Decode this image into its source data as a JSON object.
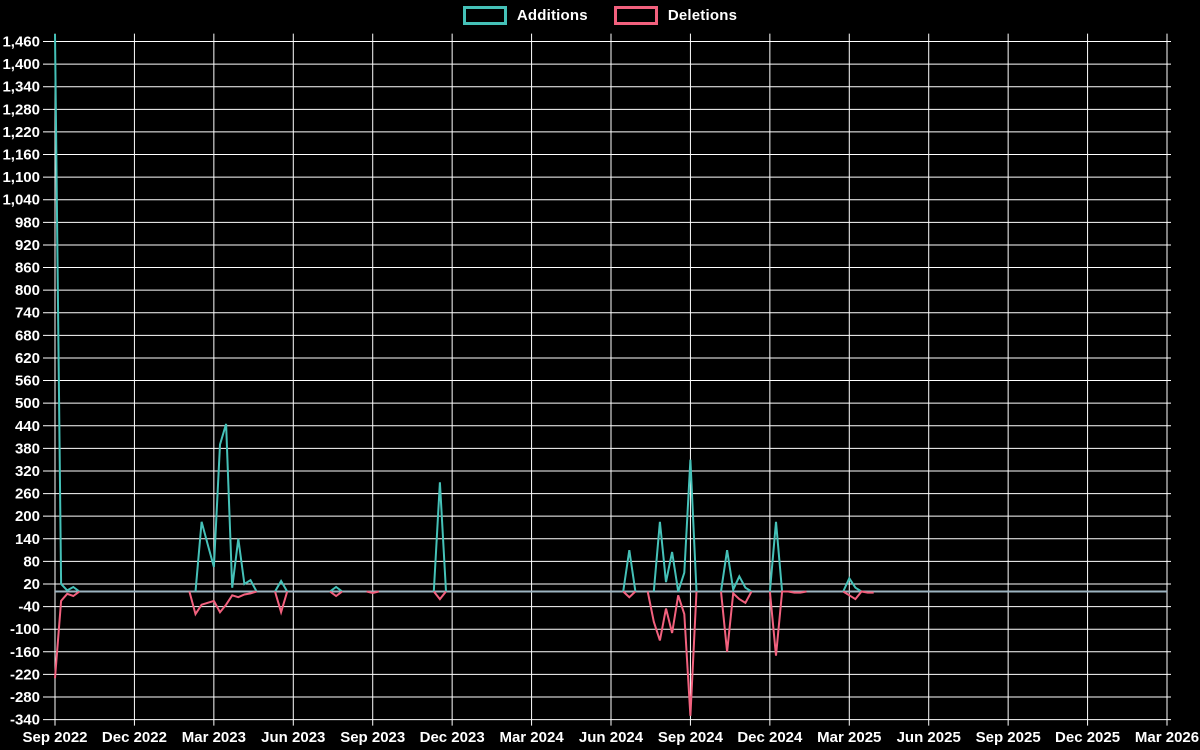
{
  "chart_data": {
    "type": "line",
    "title": "",
    "background": "#000000",
    "grid_color": "#ffffff",
    "text_color": "#ffffff",
    "zero_line_color": "#9db4c1",
    "legend": [
      {
        "label": "Additions",
        "color": "#45c1b8"
      },
      {
        "label": "Deletions",
        "color": "#f2617e"
      }
    ],
    "y_axis": {
      "min": -340,
      "max": 1460,
      "step": 60
    },
    "x_axis": {
      "labels": [
        "Sep 2022",
        "Dec 2022",
        "Mar 2023",
        "Jun 2023",
        "Sep 2023",
        "Dec 2023",
        "Mar 2024",
        "Jun 2024",
        "Sep 2024",
        "Dec 2024",
        "Mar 2025",
        "Jun 2025",
        "Sep 2025",
        "Dec 2025",
        "Mar 2026"
      ],
      "weeks_per_label": 13,
      "total_weeks": 182
    },
    "weeks_count": 135,
    "series": [
      {
        "name": "Additions",
        "color": "#45c1b8",
        "points": [
          [
            0,
            1480
          ],
          [
            1,
            20
          ],
          [
            2,
            3
          ],
          [
            3,
            12
          ],
          [
            4,
            0
          ],
          [
            22,
            0
          ],
          [
            23,
            0
          ],
          [
            24,
            185
          ],
          [
            25,
            125
          ],
          [
            26,
            65
          ],
          [
            27,
            390
          ],
          [
            28,
            445
          ],
          [
            29,
            10
          ],
          [
            30,
            140
          ],
          [
            31,
            20
          ],
          [
            32,
            30
          ],
          [
            33,
            0
          ],
          [
            36,
            0
          ],
          [
            37,
            28
          ],
          [
            38,
            0
          ],
          [
            45,
            0
          ],
          [
            46,
            12
          ],
          [
            47,
            0
          ],
          [
            62,
            0
          ],
          [
            63,
            290
          ],
          [
            64,
            0
          ],
          [
            93,
            0
          ],
          [
            94,
            110
          ],
          [
            95,
            0
          ],
          [
            97,
            0
          ],
          [
            98,
            0
          ],
          [
            99,
            185
          ],
          [
            100,
            25
          ],
          [
            101,
            105
          ],
          [
            102,
            0
          ],
          [
            103,
            50
          ],
          [
            104,
            350
          ],
          [
            105,
            0
          ],
          [
            109,
            0
          ],
          [
            110,
            110
          ],
          [
            111,
            5
          ],
          [
            112,
            40
          ],
          [
            113,
            10
          ],
          [
            114,
            0
          ],
          [
            117,
            0
          ],
          [
            118,
            185
          ],
          [
            119,
            0
          ],
          [
            129,
            0
          ],
          [
            130,
            35
          ],
          [
            131,
            10
          ],
          [
            132,
            0
          ]
        ]
      },
      {
        "name": "Deletions",
        "color": "#f2617e",
        "points": [
          [
            0,
            -230
          ],
          [
            1,
            -25
          ],
          [
            2,
            -6
          ],
          [
            3,
            -12
          ],
          [
            4,
            0
          ],
          [
            22,
            0
          ],
          [
            23,
            -60
          ],
          [
            24,
            -35
          ],
          [
            25,
            -30
          ],
          [
            26,
            -25
          ],
          [
            27,
            -55
          ],
          [
            28,
            -35
          ],
          [
            29,
            -10
          ],
          [
            30,
            -15
          ],
          [
            31,
            -8
          ],
          [
            32,
            -5
          ],
          [
            33,
            0
          ],
          [
            36,
            0
          ],
          [
            37,
            -55
          ],
          [
            38,
            0
          ],
          [
            45,
            0
          ],
          [
            46,
            -12
          ],
          [
            47,
            0
          ],
          [
            51,
            0
          ],
          [
            52,
            -4
          ],
          [
            53,
            0
          ],
          [
            62,
            0
          ],
          [
            63,
            -20
          ],
          [
            64,
            0
          ],
          [
            93,
            0
          ],
          [
            94,
            -15
          ],
          [
            95,
            0
          ],
          [
            97,
            0
          ],
          [
            98,
            -80
          ],
          [
            99,
            -130
          ],
          [
            100,
            -45
          ],
          [
            101,
            -110
          ],
          [
            102,
            -10
          ],
          [
            103,
            -60
          ],
          [
            104,
            -330
          ],
          [
            105,
            0
          ],
          [
            109,
            0
          ],
          [
            110,
            -160
          ],
          [
            111,
            -5
          ],
          [
            112,
            -20
          ],
          [
            113,
            -30
          ],
          [
            114,
            0
          ],
          [
            117,
            0
          ],
          [
            118,
            -170
          ],
          [
            119,
            0
          ],
          [
            120,
            0
          ],
          [
            121,
            -3
          ],
          [
            122,
            -3
          ],
          [
            123,
            0
          ],
          [
            129,
            0
          ],
          [
            130,
            -10
          ],
          [
            131,
            -20
          ],
          [
            132,
            0
          ],
          [
            133,
            -3
          ],
          [
            134,
            -3
          ]
        ]
      }
    ]
  }
}
